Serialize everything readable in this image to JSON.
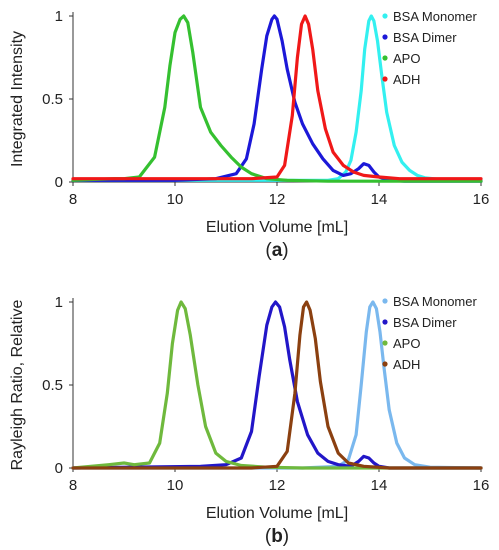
{
  "chart_data": [
    {
      "type": "line",
      "panel_label": [
        "(",
        "a",
        ")"
      ],
      "xlabel": "Elution Volume [mL]",
      "ylabel": "Integrated Intensity",
      "xlim": [
        8,
        16
      ],
      "ylim": [
        0,
        1
      ],
      "x_ticks": [
        "8",
        "10",
        "12",
        "14",
        "16"
      ],
      "y_ticks": [
        "0",
        "0.5",
        "1"
      ],
      "grid": false,
      "legend_position": "top-right",
      "legend": [
        "BSA Monomer",
        "BSA Dimer",
        "APO",
        "ADH"
      ],
      "series": [
        {
          "name": "BSA Monomer",
          "color": "#33f0f0",
          "x": [
            8,
            11,
            12.5,
            13.0,
            13.2,
            13.35,
            13.45,
            13.55,
            13.65,
            13.72,
            13.8,
            13.85,
            13.9,
            13.97,
            14.05,
            14.15,
            14.3,
            14.45,
            14.6,
            14.75,
            14.9,
            15.2,
            15.6,
            16
          ],
          "y": [
            0.01,
            0.01,
            0.01,
            0.01,
            0.02,
            0.06,
            0.13,
            0.3,
            0.55,
            0.8,
            0.97,
            1.0,
            0.97,
            0.85,
            0.65,
            0.42,
            0.22,
            0.12,
            0.07,
            0.04,
            0.025,
            0.015,
            0.01,
            0.01
          ]
        },
        {
          "name": "BSA Dimer",
          "color": "#1c18d8",
          "x": [
            8,
            10,
            10.8,
            11.2,
            11.4,
            11.55,
            11.7,
            11.8,
            11.9,
            11.95,
            12.0,
            12.1,
            12.2,
            12.35,
            12.5,
            12.7,
            12.9,
            13.1,
            13.3,
            13.45,
            13.6,
            13.7,
            13.8,
            13.9,
            14.0,
            14.2,
            14.5,
            15,
            16
          ],
          "y": [
            0.01,
            0.01,
            0.02,
            0.05,
            0.14,
            0.35,
            0.68,
            0.88,
            0.98,
            1.0,
            0.98,
            0.85,
            0.68,
            0.48,
            0.35,
            0.23,
            0.14,
            0.07,
            0.04,
            0.05,
            0.08,
            0.11,
            0.1,
            0.06,
            0.03,
            0.01,
            0.005,
            0.005,
            0.005
          ]
        },
        {
          "name": "APO",
          "color": "#35c030",
          "x": [
            8,
            8.8,
            9.0,
            9.3,
            9.6,
            9.8,
            9.9,
            10.0,
            10.1,
            10.17,
            10.25,
            10.35,
            10.5,
            10.7,
            10.9,
            11.1,
            11.3,
            11.5,
            11.8,
            12.2,
            13,
            16
          ],
          "y": [
            0.01,
            0.02,
            0.02,
            0.03,
            0.15,
            0.45,
            0.7,
            0.9,
            0.98,
            1.0,
            0.96,
            0.78,
            0.45,
            0.3,
            0.22,
            0.15,
            0.09,
            0.05,
            0.02,
            0.01,
            0.005,
            0.005
          ]
        },
        {
          "name": "ADH",
          "color": "#f01818",
          "x": [
            8,
            11.5,
            12.0,
            12.15,
            12.3,
            12.4,
            12.48,
            12.55,
            12.62,
            12.7,
            12.8,
            12.95,
            13.1,
            13.3,
            13.5,
            13.7,
            14.0,
            14.4,
            15,
            16
          ],
          "y": [
            0.02,
            0.02,
            0.03,
            0.1,
            0.4,
            0.75,
            0.95,
            1.0,
            0.95,
            0.8,
            0.55,
            0.32,
            0.18,
            0.1,
            0.06,
            0.04,
            0.03,
            0.02,
            0.02,
            0.02
          ]
        }
      ]
    },
    {
      "type": "line",
      "panel_label": [
        "(",
        "b",
        ")"
      ],
      "xlabel": "Elution Volume [mL]",
      "ylabel": "Rayleigh Ratio, Relative",
      "xlim": [
        8,
        16
      ],
      "ylim": [
        0,
        1
      ],
      "x_ticks": [
        "8",
        "10",
        "12",
        "14",
        "16"
      ],
      "y_ticks": [
        "0",
        "0.5",
        "1"
      ],
      "grid": false,
      "legend_position": "top-right",
      "legend": [
        "BSA Monomer",
        "BSA Dimer",
        "APO",
        "ADH"
      ],
      "series": [
        {
          "name": "BSA Monomer",
          "color": "#7ab8ee",
          "x": [
            8,
            11,
            12.5,
            13.2,
            13.4,
            13.55,
            13.65,
            13.75,
            13.82,
            13.88,
            13.95,
            14.02,
            14.1,
            14.2,
            14.35,
            14.5,
            14.7,
            15,
            16
          ],
          "y": [
            0.0,
            0.0,
            0.0,
            0.01,
            0.05,
            0.2,
            0.5,
            0.82,
            0.97,
            1.0,
            0.96,
            0.82,
            0.6,
            0.35,
            0.15,
            0.06,
            0.02,
            0.005,
            0.0
          ]
        },
        {
          "name": "BSA Dimer",
          "color": "#2216c8",
          "x": [
            8,
            10.5,
            11.0,
            11.3,
            11.5,
            11.65,
            11.8,
            11.9,
            11.97,
            12.05,
            12.15,
            12.25,
            12.4,
            12.6,
            12.8,
            13.0,
            13.2,
            13.45,
            13.6,
            13.7,
            13.8,
            13.9,
            14.0,
            14.2,
            14.6,
            16
          ],
          "y": [
            0.0,
            0.01,
            0.02,
            0.06,
            0.22,
            0.55,
            0.86,
            0.97,
            1.0,
            0.97,
            0.85,
            0.65,
            0.4,
            0.2,
            0.09,
            0.04,
            0.02,
            0.01,
            0.04,
            0.07,
            0.06,
            0.03,
            0.01,
            0.0,
            0.0,
            0.0
          ]
        },
        {
          "name": "APO",
          "color": "#6fb93d",
          "x": [
            8,
            8.7,
            9.0,
            9.2,
            9.5,
            9.7,
            9.85,
            9.95,
            10.05,
            10.12,
            10.2,
            10.3,
            10.45,
            10.6,
            10.8,
            11.0,
            11.3,
            11.8,
            12.5,
            16
          ],
          "y": [
            0.0,
            0.02,
            0.03,
            0.02,
            0.03,
            0.15,
            0.45,
            0.75,
            0.95,
            1.0,
            0.96,
            0.8,
            0.5,
            0.25,
            0.09,
            0.04,
            0.015,
            0.005,
            0.0,
            0.0
          ]
        },
        {
          "name": "ADH",
          "color": "#8b4010",
          "x": [
            8,
            11.5,
            12.0,
            12.2,
            12.35,
            12.45,
            12.52,
            12.58,
            12.65,
            12.75,
            12.85,
            13.0,
            13.2,
            13.4,
            13.7,
            14.2,
            16
          ],
          "y": [
            0.0,
            0.0,
            0.01,
            0.1,
            0.45,
            0.8,
            0.97,
            1.0,
            0.95,
            0.78,
            0.52,
            0.25,
            0.09,
            0.03,
            0.01,
            0.0,
            0.0
          ]
        }
      ]
    }
  ]
}
